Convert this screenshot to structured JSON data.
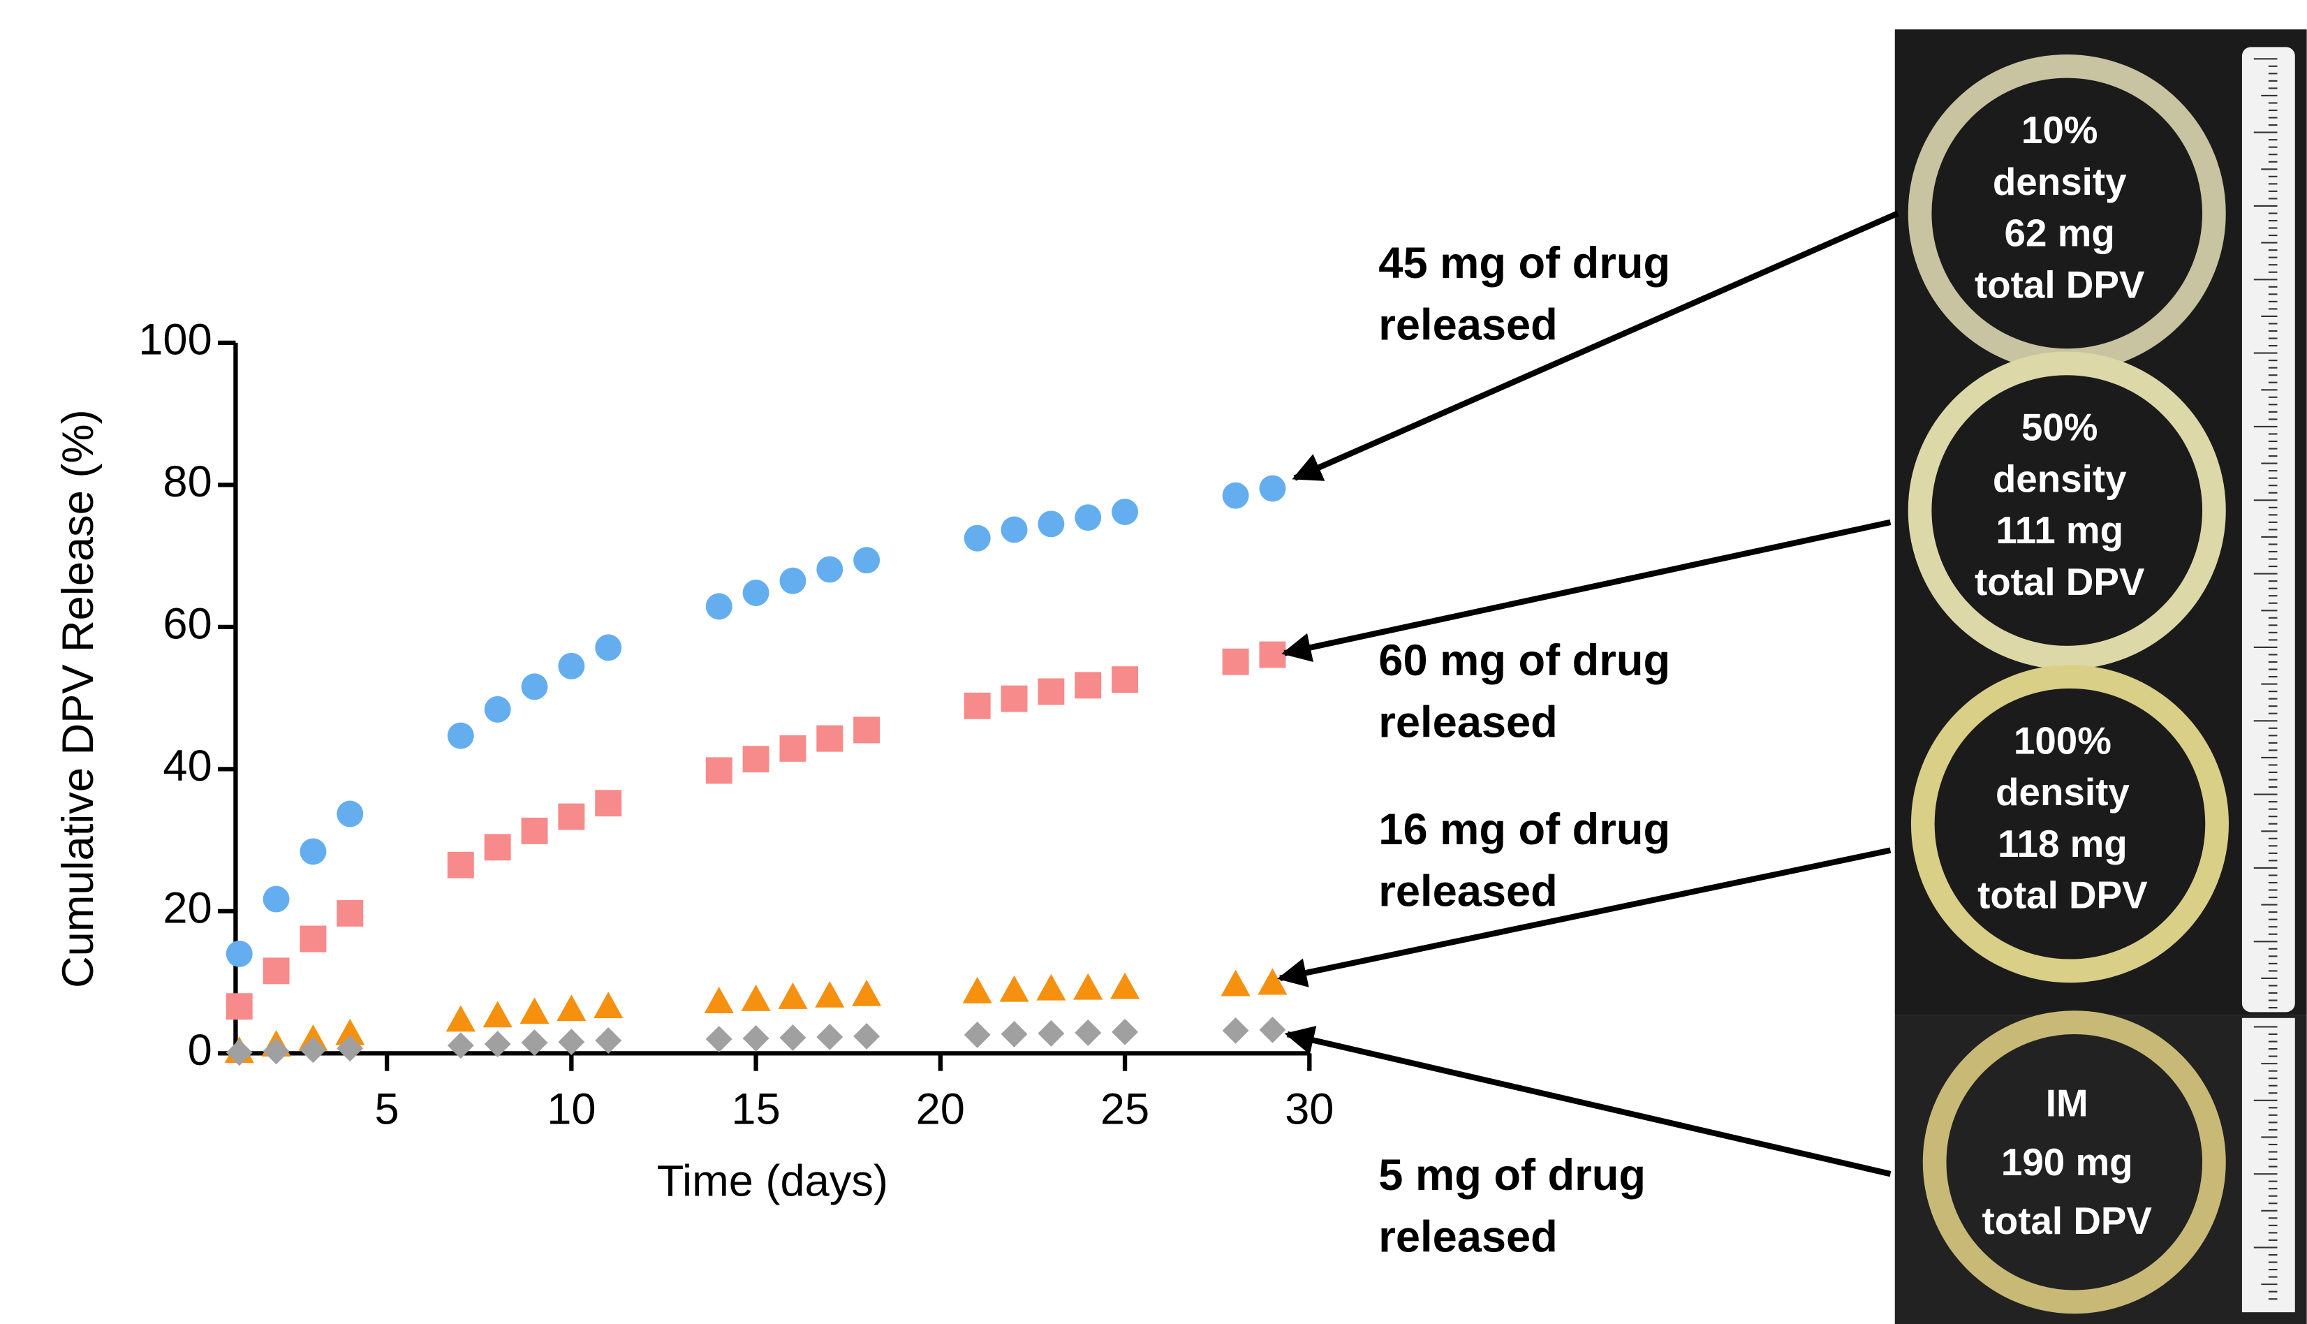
{
  "chart_data": {
    "type": "scatter",
    "x_label": "Time (days)",
    "y_label": "Cumulative DPV Release (%)",
    "x": [
      1,
      2,
      3,
      4,
      7,
      8,
      9,
      10,
      11,
      14,
      15,
      16,
      17,
      18,
      21,
      22,
      23,
      24,
      25,
      28,
      29
    ],
    "series": [
      {
        "color": "#64aef0",
        "marker": "circle",
        "values": [
          14,
          21.7,
          28.4,
          33.7,
          44.7,
          48.4,
          51.6,
          54.5,
          57.1,
          62.9,
          64.8,
          66.5,
          68.1,
          69.4,
          72.5,
          73.7,
          74.5,
          75.4,
          76.2,
          78.5,
          79.5
        ]
      },
      {
        "color": "#f78a8a",
        "marker": "square",
        "values": [
          6.6,
          11.6,
          16.1,
          19.7,
          26.5,
          29,
          31.3,
          33.3,
          35.2,
          39.8,
          41.4,
          42.9,
          44.3,
          45.5,
          48.9,
          49.9,
          50.9,
          51.8,
          52.6,
          55.1,
          56.1
        ]
      },
      {
        "color": "#f5910f",
        "marker": "triangle",
        "values": [
          0.3,
          1.2,
          2,
          2.8,
          4.7,
          5.3,
          5.8,
          6.2,
          6.6,
          7.3,
          7.6,
          7.9,
          8.1,
          8.3,
          8.7,
          8.9,
          9.1,
          9.2,
          9.3,
          9.7,
          9.9
        ]
      },
      {
        "color": "#a0a0a0",
        "marker": "diamond",
        "values": [
          0.1,
          0.3,
          0.5,
          0.7,
          1.1,
          1.3,
          1.5,
          1.6,
          1.8,
          2,
          2.1,
          2.2,
          2.3,
          2.4,
          2.6,
          2.7,
          2.8,
          2.9,
          3,
          3.2,
          3.3
        ]
      }
    ],
    "xlim": [
      0.9,
      30
    ],
    "xticks": [
      5,
      10,
      15,
      20,
      25,
      30
    ],
    "ylim": [
      0,
      100
    ],
    "yticks": [
      0,
      20,
      40,
      60,
      80,
      100
    ],
    "annotations": [
      {
        "lines": [
          "45 mg of drug",
          "released"
        ]
      },
      {
        "lines": [
          "60 mg of drug",
          "released"
        ]
      },
      {
        "lines": [
          "16 mg of drug",
          "released"
        ]
      },
      {
        "lines": [
          "5 mg of drug",
          "released"
        ]
      }
    ]
  },
  "photos": [
    {
      "lines": [
        "10%",
        "density",
        "62 mg",
        "total DPV"
      ]
    },
    {
      "lines": [
        "50%",
        "density",
        "111 mg",
        "total DPV"
      ]
    },
    {
      "lines": [
        "100%",
        "density",
        "118 mg",
        "total DPV"
      ]
    },
    {
      "lines": [
        "IM",
        "190 mg",
        "total DPV"
      ]
    }
  ]
}
